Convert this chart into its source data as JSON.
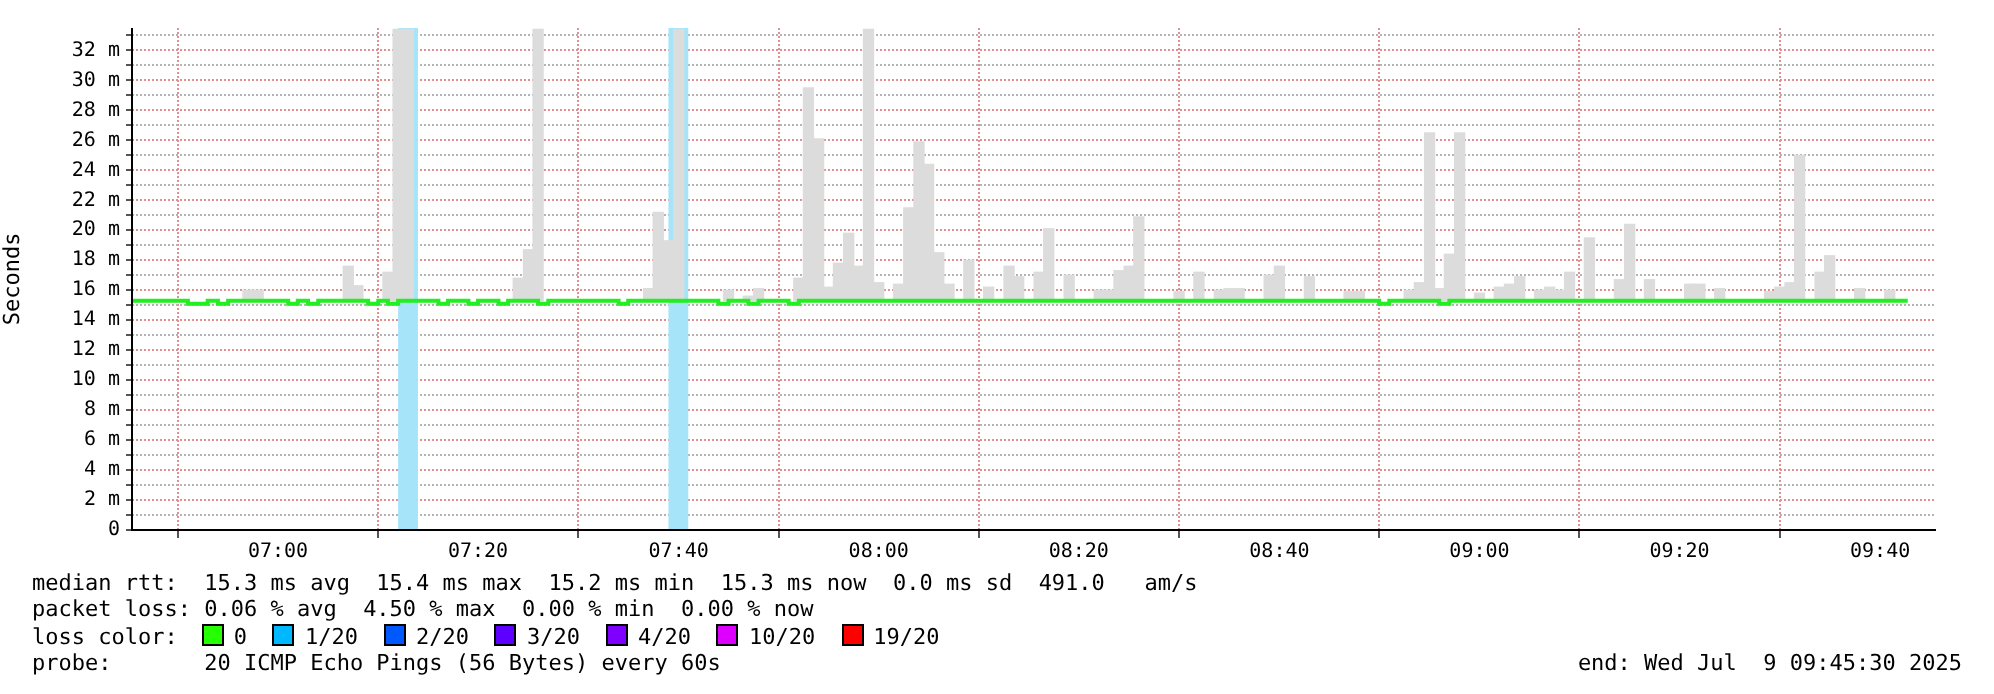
{
  "chart_data": {
    "type": "bar",
    "ylabel": "Seconds",
    "xlim": [
      6.757,
      9.76
    ],
    "ylim": [
      0,
      33.5
    ],
    "xticks": [
      {
        "value": 7,
        "label": "07:00"
      },
      {
        "value": 7.333,
        "label": "07:20"
      },
      {
        "value": 7.667,
        "label": "07:40"
      },
      {
        "value": 8,
        "label": "08:00"
      },
      {
        "value": 8.333,
        "label": "08:20"
      },
      {
        "value": 8.667,
        "label": "08:40"
      },
      {
        "value": 9,
        "label": "09:00"
      },
      {
        "value": 9.333,
        "label": "09:20"
      },
      {
        "value": 9.667,
        "label": "09:40"
      }
    ],
    "yticks": [
      0,
      {
        "value": 1,
        "label": null
      },
      {
        "value": 2,
        "label": "2 m"
      },
      {
        "value": 3,
        "label": null
      },
      {
        "value": 4,
        "label": "4 m"
      },
      {
        "value": 5,
        "label": null
      },
      {
        "value": 6,
        "label": "6 m"
      },
      {
        "value": 7,
        "label": null
      },
      {
        "value": 8,
        "label": "8 m"
      },
      {
        "value": 9,
        "label": null
      },
      {
        "value": 10,
        "label": "10 m"
      },
      {
        "value": 11,
        "label": null
      },
      {
        "value": 12,
        "label": "12 m"
      },
      {
        "value": 13,
        "label": null
      },
      {
        "value": 14,
        "label": "14 m"
      },
      {
        "value": 15,
        "label": null
      },
      {
        "value": 16,
        "label": "16 m"
      },
      {
        "value": 17,
        "label": null
      },
      {
        "value": 18,
        "label": "18 m"
      },
      {
        "value": 19,
        "label": null
      },
      {
        "value": 20,
        "label": "20 m"
      },
      {
        "value": 21,
        "label": null
      },
      {
        "value": 22,
        "label": "22 m"
      },
      {
        "value": 23,
        "label": null
      },
      {
        "value": 24,
        "label": "24 m"
      },
      {
        "value": 25,
        "label": null
      },
      {
        "value": 26,
        "label": "26 m"
      },
      {
        "value": 27,
        "label": null
      },
      {
        "value": 28,
        "label": "28 m"
      },
      {
        "value": 29,
        "label": null
      },
      {
        "value": 30,
        "label": "30 m"
      },
      {
        "value": 31,
        "label": null
      },
      {
        "value": 32,
        "label": "32 m"
      },
      {
        "value": 33,
        "label": null
      }
    ],
    "grid": true,
    "legend": false,
    "bands": [
      {
        "axis": "x",
        "from": 7.2,
        "to": 7.233,
        "color": "#a6e4fa"
      },
      {
        "axis": "x",
        "from": 7.65,
        "to": 7.683,
        "color": "#a6e4fa"
      }
    ],
    "series": [
      {
        "type": "bar",
        "color": "#dcdcdc",
        "x": [
          6.95,
          6.967,
          7.117,
          7.133,
          7.183,
          7.2,
          7.217,
          7.4,
          7.417,
          7.433,
          7.617,
          7.633,
          7.65,
          7.667,
          7.75,
          7.783,
          7.8,
          7.867,
          7.883,
          7.9,
          7.917,
          7.933,
          7.95,
          7.967,
          7.983,
          8,
          8.033,
          8.05,
          8.067,
          8.083,
          8.1,
          8.117,
          8.15,
          8.183,
          8.217,
          8.233,
          8.267,
          8.283,
          8.317,
          8.367,
          8.383,
          8.4,
          8.417,
          8.433,
          8.5,
          8.533,
          8.567,
          8.583,
          8.6,
          8.65,
          8.667,
          8.717,
          8.783,
          8.8,
          8.883,
          8.9,
          8.917,
          8.933,
          8.95,
          8.967,
          9,
          9.033,
          9.05,
          9.067,
          9.1,
          9.117,
          9.133,
          9.15,
          9.183,
          9.233,
          9.25,
          9.283,
          9.35,
          9.367,
          9.4,
          9.483,
          9.5,
          9.517,
          9.533,
          9.567,
          9.583,
          9.633,
          9.683
        ],
        "base": [
          15.3,
          15.3,
          15.3,
          15.3,
          15.3,
          15.3,
          15.3,
          15.3,
          15.3,
          15.3,
          15.3,
          15.3,
          15.3,
          15.3,
          15.3,
          15.3,
          15.3,
          15.3,
          15.3,
          15.3,
          15.3,
          15.3,
          15.3,
          15.3,
          15.3,
          15.3,
          15.3,
          15.3,
          15.3,
          15.3,
          15.3,
          15.3,
          15.3,
          15.3,
          15.3,
          15.3,
          15.3,
          15.3,
          15.3,
          15.3,
          15.3,
          15.3,
          15.3,
          15.3,
          15.3,
          15.3,
          15.3,
          15.3,
          15.3,
          15.3,
          15.3,
          15.3,
          15.3,
          15.3,
          15.3,
          15.3,
          15.3,
          15.3,
          15.3,
          15.3,
          15.3,
          15.3,
          15.3,
          15.3,
          15.3,
          15.3,
          15.3,
          15.3,
          15.3,
          15.3,
          15.3,
          15.3,
          15.3,
          15.3,
          15.3,
          15.3,
          15.3,
          15.3,
          15.3,
          15.3,
          15.3,
          15.3,
          15.3
        ],
        "values": [
          0.7,
          0.7,
          2.3,
          1,
          1.9,
          18.1,
          18.1,
          1.5,
          3.4,
          18.1,
          0.8,
          5.9,
          4,
          18.1,
          0.7,
          0.3,
          0.8,
          1.5,
          14.2,
          10.8,
          0.9,
          2.5,
          4.5,
          2.3,
          18.1,
          1.2,
          1.1,
          6.2,
          10.6,
          9.1,
          3.2,
          1.1,
          2.7,
          0.9,
          2.3,
          1.6,
          1.9,
          4.8,
          1.7,
          0.7,
          0.7,
          2,
          2.3,
          5.6,
          0.6,
          1.9,
          0.7,
          0.8,
          0.8,
          1.7,
          2.3,
          1.6,
          0.6,
          0.6,
          0.7,
          1.2,
          11.2,
          0.8,
          3.1,
          11.2,
          0.5,
          0.9,
          1.1,
          1.6,
          0.7,
          0.9,
          0.7,
          1.9,
          4.2,
          1.4,
          5.1,
          1.4,
          1.1,
          1.1,
          0.8,
          0.6,
          0.9,
          1.2,
          9.7,
          1.9,
          3,
          0.8,
          0.7
        ]
      },
      {
        "type": "step",
        "color": "#22ee22",
        "x": [
          6.757,
          6.85,
          6.883,
          6.9,
          6.917,
          7.017,
          7.033,
          7.05,
          7.067,
          7.15,
          7.167,
          7.183,
          7.2,
          7.267,
          7.283,
          7.317,
          7.333,
          7.367,
          7.383,
          7.433,
          7.45,
          7.567,
          7.583,
          7.733,
          7.75,
          7.783,
          7.8,
          7.85,
          7.867,
          8.833,
          8.85,
          8.933,
          8.95,
          9.713
        ],
        "values": [
          15.3,
          15.1,
          15.3,
          15.1,
          15.3,
          15.1,
          15.3,
          15.1,
          15.3,
          15.1,
          15.3,
          15.1,
          15.3,
          15.1,
          15.3,
          15.1,
          15.3,
          15.1,
          15.3,
          15.1,
          15.3,
          15.1,
          15.3,
          15.1,
          15.3,
          15.1,
          15.3,
          15.1,
          15.3,
          15.1,
          15.3,
          15.1,
          15.3,
          15.3
        ]
      }
    ],
    "annotations": [
      "median rtt:  15.3 ms avg  15.4 ms max  15.2 ms min  15.3 ms now  0.0 ms sd  491.0   am/s",
      "packet loss: 0.06 % avg  4.50 % max  0.00 % min  0.00 % now",
      "loss color:",
      "0",
      "1/20",
      "2/20",
      "3/20",
      "4/20",
      "10/20",
      "19/20",
      "probe:       20 ICMP Echo Pings (56 Bytes) every 60s",
      "end: Wed Jul  9 09:45:30 2025"
    ]
  }
}
